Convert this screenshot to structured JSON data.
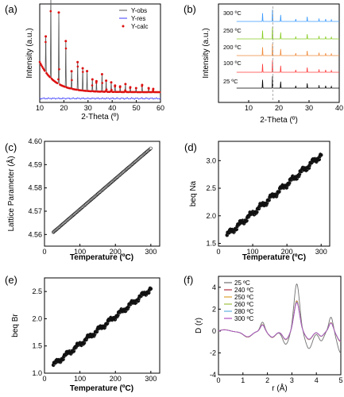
{
  "chart_data": [
    {
      "panel": "(a)",
      "type": "line",
      "xlabel": "2-Theta (o)",
      "ylabel": "Intensity (a.u.)",
      "xlim": [
        10,
        60
      ],
      "xticks": [
        "10",
        "20",
        "30",
        "40",
        "50",
        "60"
      ],
      "legend": {
        "position": "top-right",
        "entries": [
          "Y-obs",
          "Y-res",
          "Y-calc"
        ]
      },
      "colors": {
        "Y-obs": "#555555",
        "Y-res": "#3b3bff",
        "Y-calc": "#dd1111"
      },
      "peaks": [
        {
          "x": 12.5,
          "y": 0.45
        },
        {
          "x": 14.6,
          "y": 1.0
        },
        {
          "x": 17.9,
          "y": 0.9
        },
        {
          "x": 20.8,
          "y": 0.58
        },
        {
          "x": 23.2,
          "y": 0.22
        },
        {
          "x": 25.7,
          "y": 0.35
        },
        {
          "x": 27.8,
          "y": 0.28
        },
        {
          "x": 29.6,
          "y": 0.25
        },
        {
          "x": 31.8,
          "y": 0.15
        },
        {
          "x": 33.5,
          "y": 0.13
        },
        {
          "x": 35.8,
          "y": 0.22
        },
        {
          "x": 37.5,
          "y": 0.14
        },
        {
          "x": 39.6,
          "y": 0.12
        },
        {
          "x": 41.2,
          "y": 0.08
        },
        {
          "x": 43.3,
          "y": 0.07
        },
        {
          "x": 45.5,
          "y": 0.1
        },
        {
          "x": 47.5,
          "y": 0.06
        },
        {
          "x": 49.9,
          "y": 0.05
        },
        {
          "x": 52.4,
          "y": 0.09
        },
        {
          "x": 55.1,
          "y": 0.05
        },
        {
          "x": 57.0,
          "y": 0.04
        }
      ]
    },
    {
      "panel": "(b)",
      "type": "line",
      "xlabel": "2-Theta (o)",
      "ylabel": "Intensity (a.u.)",
      "xlim": [
        0,
        40
      ],
      "xticks": [
        "10",
        "20",
        "30",
        "40"
      ],
      "dashed_line_x": 18,
      "series": [
        {
          "name": "25 oC",
          "color": "#000000"
        },
        {
          "name": "100 oC",
          "color": "#ff3b3b"
        },
        {
          "name": "200 oC",
          "color": "#f08a3b"
        },
        {
          "name": "250 oC",
          "color": "#88cc22"
        },
        {
          "name": "300 oC",
          "color": "#3b9bff"
        }
      ],
      "peaks": [
        {
          "x": 14.6,
          "y": 0.7
        },
        {
          "x": 17.9,
          "y": 1.0
        },
        {
          "x": 20.6,
          "y": 0.55
        },
        {
          "x": 25.6,
          "y": 0.2
        },
        {
          "x": 29.4,
          "y": 0.4
        },
        {
          "x": 33.3,
          "y": 0.25
        },
        {
          "x": 35.5,
          "y": 0.2
        },
        {
          "x": 37.4,
          "y": 0.15
        }
      ]
    },
    {
      "panel": "(c)",
      "type": "scatter",
      "xlabel": "Temperature (oC)",
      "ylabel": "Lattice Parameter (Å)",
      "xlim": [
        0,
        325
      ],
      "ylim": [
        4.555,
        4.6
      ],
      "xticks": [
        "0",
        "100",
        "200",
        "300"
      ],
      "yticks": [
        "4.56",
        "4.57",
        "4.58",
        "4.59",
        "4.60"
      ],
      "x_start": 25,
      "x_end": 300,
      "y_start": 4.561,
      "y_end": 4.597
    },
    {
      "panel": "(d)",
      "type": "scatter",
      "xlabel": "Temperature (oC)",
      "ylabel": "beq Na",
      "xlim": [
        0,
        325
      ],
      "ylim": [
        1.45,
        3.35
      ],
      "xticks": [
        "0",
        "100",
        "200",
        "300"
      ],
      "yticks": [
        "1.5",
        "2.0",
        "2.5",
        "3.0"
      ],
      "x_start": 25,
      "x_end": 300,
      "y_start": 1.65,
      "y_end": 3.1
    },
    {
      "panel": "(e)",
      "type": "scatter",
      "xlabel": "Temperature (oC)",
      "ylabel": "beq Br",
      "xlim": [
        0,
        325
      ],
      "ylim": [
        1.0,
        2.75
      ],
      "xticks": [
        "0",
        "100",
        "200",
        "300"
      ],
      "yticks": [
        "1.0",
        "1.5",
        "2.0",
        "2.5"
      ],
      "x_start": 25,
      "x_end": 300,
      "y_start": 1.15,
      "y_end": 2.55
    },
    {
      "panel": "(f)",
      "type": "line",
      "xlabel": "r (Å)",
      "ylabel": "D (r)",
      "xlim": [
        0,
        5
      ],
      "ylim": [
        -4,
        5
      ],
      "xticks": [
        "0",
        "1",
        "2",
        "3",
        "4",
        "5"
      ],
      "yticks": [
        "-4",
        "-2",
        "0",
        "2",
        "4"
      ],
      "legend": {
        "position": "top-left"
      },
      "series": [
        {
          "name": "25 oC",
          "color": "#707070"
        },
        {
          "name": "240 oC",
          "color": "#b03040"
        },
        {
          "name": "250 oC",
          "color": "#e0a030"
        },
        {
          "name": "260 oC",
          "color": "#a0c040"
        },
        {
          "name": "280 oC",
          "color": "#60b0e0"
        },
        {
          "name": "300 oC",
          "color": "#b050c0"
        }
      ]
    }
  ],
  "labels": {
    "a": "(a)",
    "b": "(b)",
    "c": "(c)",
    "d": "(d)",
    "e": "(e)",
    "f": "(f)",
    "a_x": "2-Theta (º)",
    "a_y": "Intensity (a.u.)",
    "a_leg_obs": "Y-obs",
    "a_leg_res": "Y-res",
    "a_leg_calc": "Y-calc",
    "b_x": "2-Theta (º)",
    "b_y": "Intensity (a.u.)",
    "b_t300": "300 ºC",
    "b_t250": "250 ºC",
    "b_t200": "200 ºC",
    "b_t100": "100 ºC",
    "b_t25": "25 ºC",
    "c_x": "Temperature (ºC)",
    "c_y": "Lattice Parameter (Å)",
    "d_x": "Temperature (ºC)",
    "d_y": "beq Na",
    "e_x": "Temperature (ºC)",
    "e_y": "beq Br",
    "f_x": "r (Å)",
    "f_y": "D (r)",
    "f_leg": [
      "25 ºC",
      "240 ºC",
      "250 ºC",
      "260 ºC",
      "280 ºC",
      "300 ºC"
    ]
  }
}
